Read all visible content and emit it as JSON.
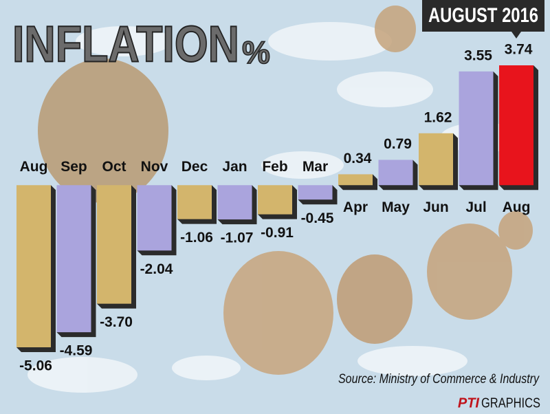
{
  "chart_data": {
    "type": "bar",
    "title": "INFLATION",
    "unit": "%",
    "badge": "AUGUST 2016",
    "source": "Source: Ministry of Commerce & Industry",
    "credit": [
      "PTI",
      "GRAPHICS"
    ],
    "categories": [
      "Aug",
      "Sep",
      "Oct",
      "Nov",
      "Dec",
      "Jan",
      "Feb",
      "Mar",
      "Apr",
      "May",
      "Jun",
      "Jul",
      "Aug"
    ],
    "values": [
      -5.06,
      -4.59,
      -3.7,
      -2.04,
      -1.06,
      -1.07,
      -0.91,
      -0.45,
      0.34,
      0.79,
      1.62,
      3.55,
      3.74
    ],
    "value_labels": [
      "-5.06",
      "-4.59",
      "-3.70",
      "-2.04",
      "-1.06",
      "-1.07",
      "-0.91",
      "-0.45",
      "0.34",
      "0.79",
      "1.62",
      "3.55",
      "3.74"
    ],
    "colors": [
      "#d3b56c",
      "#aaa4dd",
      "#d3b56c",
      "#aaa4dd",
      "#d3b56c",
      "#aaa4dd",
      "#d3b56c",
      "#aaa4dd",
      "#d3b56c",
      "#aaa4dd",
      "#d3b56c",
      "#aaa4dd",
      "#e8141c"
    ]
  }
}
